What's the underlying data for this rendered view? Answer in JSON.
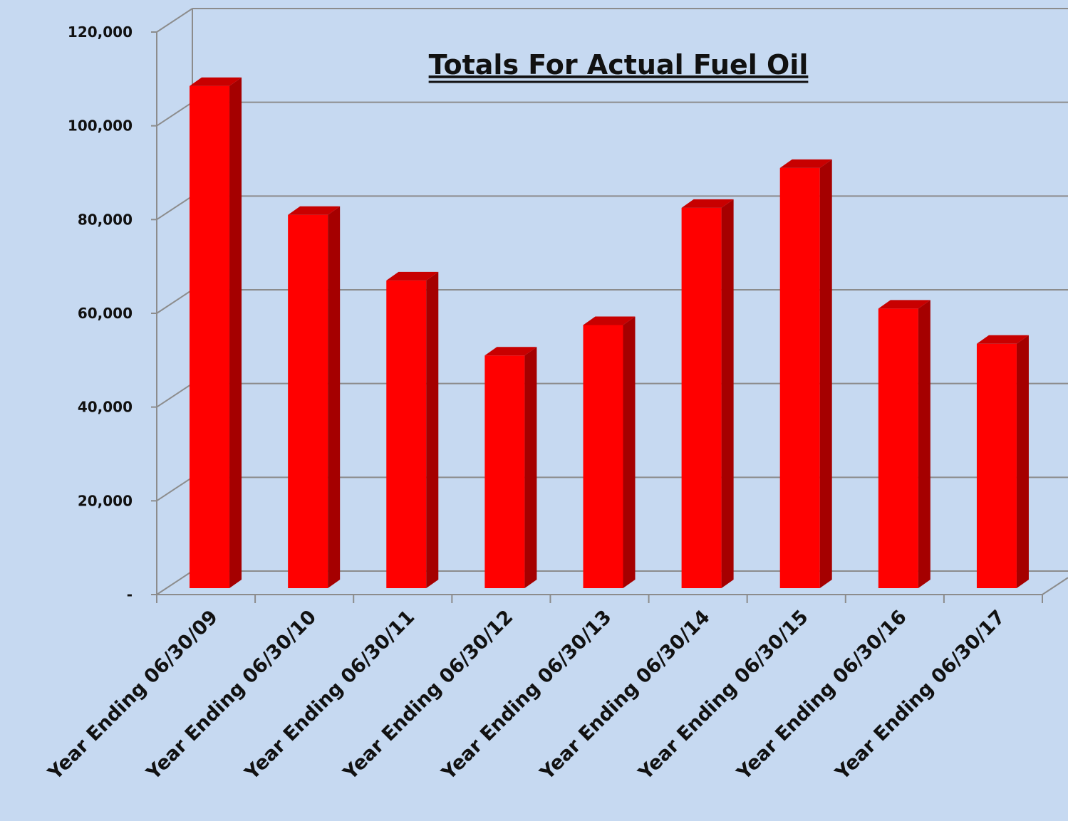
{
  "chart_data": {
    "type": "bar",
    "title": "Totals For Actual Fuel Oil",
    "xlabel": "",
    "ylabel": "",
    "categories": [
      "Year Ending 06/30/09",
      "Year Ending 06/30/10",
      "Year Ending 06/30/11",
      "Year Ending 06/30/12",
      "Year Ending 06/30/13",
      "Year Ending 06/30/14",
      "Year Ending 06/30/15",
      "Year Ending 06/30/16",
      "Year Ending 06/30/17"
    ],
    "values": [
      108500,
      81000,
      67000,
      51000,
      57500,
      82500,
      91000,
      61000,
      53500
    ],
    "ylim": [
      0,
      120000
    ],
    "yticks": [
      {
        "value": 0,
        "label": "-"
      },
      {
        "value": 20000,
        "label": "20,000"
      },
      {
        "value": 40000,
        "label": "40,000"
      },
      {
        "value": 60000,
        "label": "60,000"
      },
      {
        "value": 80000,
        "label": "80,000"
      },
      {
        "value": 100000,
        "label": "100,000"
      },
      {
        "value": 120000,
        "label": "120,000"
      }
    ],
    "grid": true,
    "legend": "none",
    "colors": {
      "background": "#c6d9f1",
      "bar_front": "#ff0000",
      "bar_side": "#a50000",
      "bar_top": "#c80000",
      "gridline": "#8c8c8c"
    }
  }
}
